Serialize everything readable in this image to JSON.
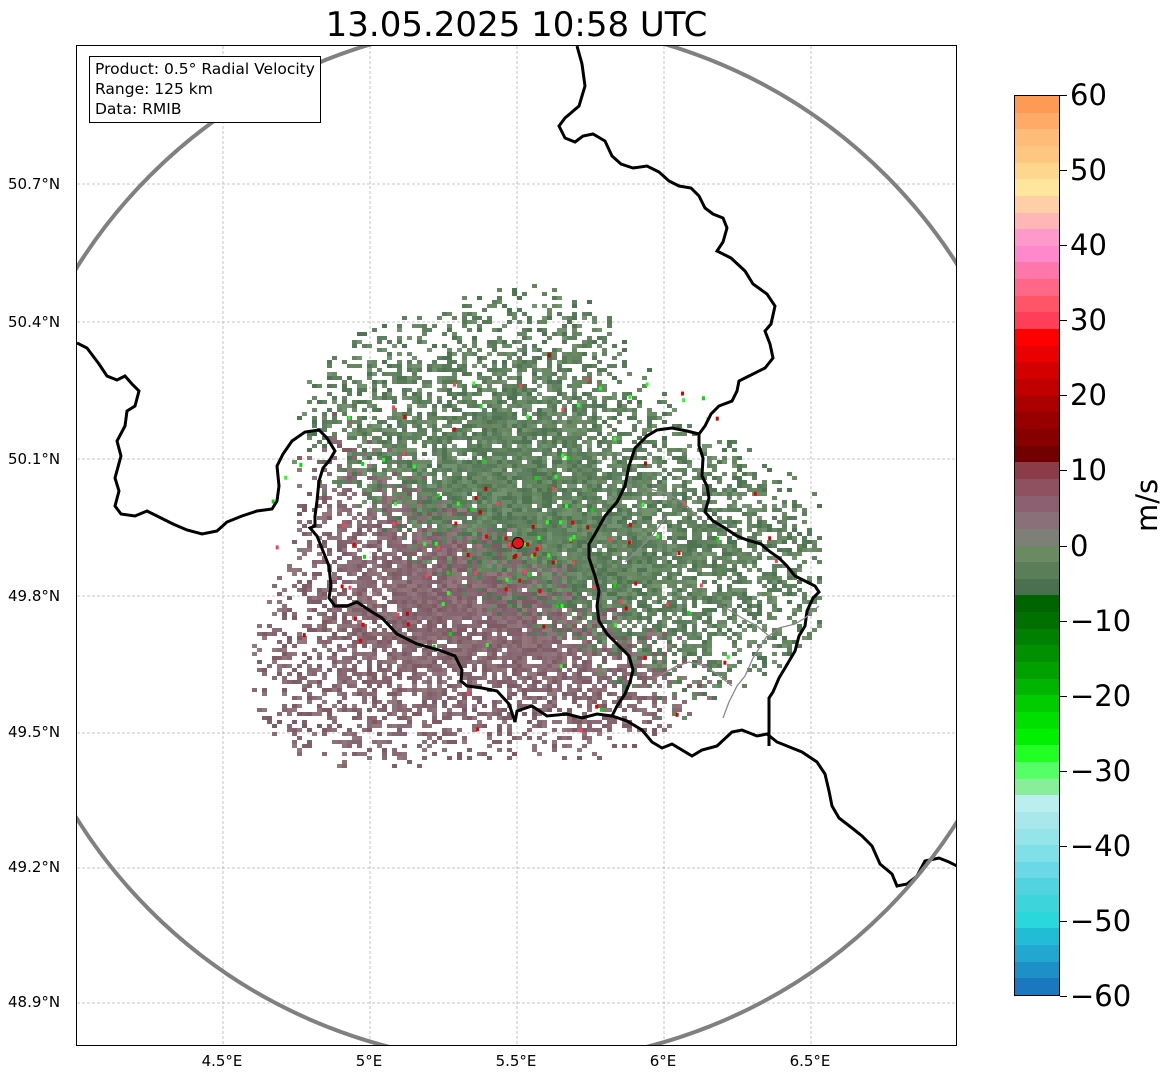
{
  "title": "13.05.2025 10:58 UTC",
  "info_box": {
    "product": "Product: 0.5° Radial Velocity",
    "range": "Range: 125 km",
    "data": "Data: RMIB"
  },
  "map": {
    "lon_range": [
      4.0,
      7.0
    ],
    "lat_range": [
      48.8,
      51.0
    ],
    "lon_ticks": [
      "4.5°E",
      "5°E",
      "5.5°E",
      "6°E",
      "6.5°E"
    ],
    "lat_ticks": [
      "50.7°N",
      "50.4°N",
      "50.1°N",
      "49.8°N",
      "49.5°N",
      "49.2°N",
      "48.9°N"
    ],
    "grid": true,
    "radar_site": {
      "lon": 5.5,
      "lat": 49.91,
      "color": "#e8141c"
    },
    "range_ring_color": "#808080",
    "border_color": "#000000",
    "regional_border_color": "#8a8a8a"
  },
  "colorbar": {
    "unit": "m/s",
    "min": -60,
    "max": 60,
    "ticks": [
      "60",
      "50",
      "40",
      "30",
      "20",
      "10",
      "0",
      "−10",
      "−20",
      "−30",
      "−40",
      "−50",
      "−60"
    ],
    "colors_top_to_bottom": [
      "#ff9a55",
      "#ffaa66",
      "#ffbb77",
      "#ffc682",
      "#ffd68e",
      "#ffe69c",
      "#ffd0a8",
      "#ffb6b6",
      "#ff99cc",
      "#ff88cc",
      "#ff77aa",
      "#ff6688",
      "#ff5566",
      "#ff3f5a",
      "#ff0000",
      "#ea0000",
      "#d40000",
      "#c00000",
      "#aa0000",
      "#980000",
      "#860000",
      "#720000",
      "#8b3c48",
      "#8f5060",
      "#8c6070",
      "#8a7078",
      "#7e8078",
      "#6a8a62",
      "#5a7f58",
      "#4a7050",
      "#006400",
      "#007000",
      "#008000",
      "#009000",
      "#00a000",
      "#00b400",
      "#00cc00",
      "#00e000",
      "#00f000",
      "#22ff22",
      "#55ff66",
      "#88ee99",
      "#bbeeee",
      "#a8e8ec",
      "#94e4ea",
      "#80e0e8",
      "#6ad8e6",
      "#52d4e0",
      "#3ed4dc",
      "#2ad8dc",
      "#22bcd4",
      "#22a8d0",
      "#1e90c8",
      "#1a78c0"
    ]
  }
}
